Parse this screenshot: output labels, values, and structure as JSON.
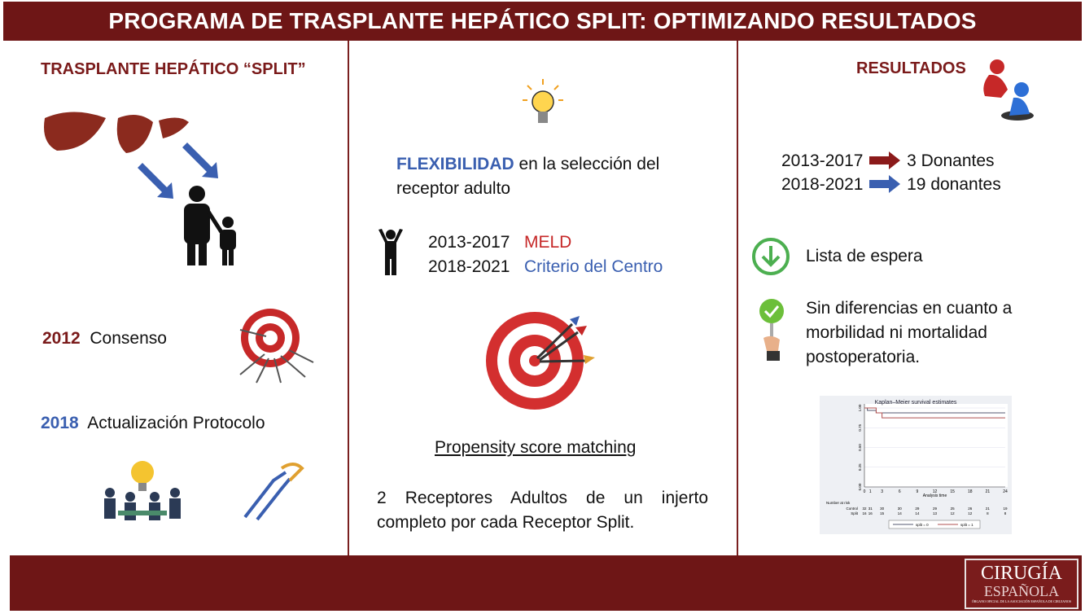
{
  "title": "PROGRAMA DE TRASPLANTE HEPÁTICO SPLIT: OPTIMIZANDO RESULTADOS",
  "colors": {
    "brand": "#6e1616",
    "accent_blue": "#3a5fb0",
    "accent_red": "#8b1a1a",
    "green": "#4caf50"
  },
  "left": {
    "heading": "TRASPLANTE HEPÁTICO “SPLIT”",
    "item1_year": "2012",
    "item1_label": "Consenso",
    "item2_year": "2018",
    "item2_label": "Actualización Protocolo",
    "icons": [
      "liver-icon",
      "arrow-icon",
      "parent-child-icon",
      "target-icon",
      "teamwork-icon",
      "handshake-icon"
    ]
  },
  "center": {
    "flex_bold": "FLEXIBILIDAD",
    "flex_rest": " en la selección del",
    "flex_line2": "receptor adulto",
    "period1": "2013-2017",
    "crit1": "MELD",
    "period2": "2018-2021",
    "crit2": "Criterio del Centro",
    "psm": "Propensity score matching",
    "summary": "2 Receptores Adultos de un injerto completo por cada Receptor Split.",
    "icons": [
      "lightbulb-icon",
      "person-icon",
      "target-darts-icon"
    ]
  },
  "right": {
    "heading": "RESULTADOS",
    "row1_period": "2013-2017",
    "row1_value": "3 Donantes",
    "row2_period": "2018-2021",
    "row2_value": "19 donantes",
    "waitlist": "Lista de espera",
    "nodiff": "Sin diferencias en cuanto a morbilidad ni mortalidad postoperatoria.",
    "icons": [
      "helping-figures-icon",
      "down-arrow-circle-icon",
      "check-hand-icon"
    ]
  },
  "chart_data": {
    "type": "line",
    "title": "Kaplan–Meier survival estimates",
    "xlabel": "Analysis time",
    "ylabel": "",
    "xticks": [
      0,
      1,
      3,
      6,
      9,
      12,
      15,
      18,
      21,
      24
    ],
    "yticks": [
      "0.00",
      "0.25",
      "0.50",
      "0.75",
      "1.00"
    ],
    "xlim": [
      0,
      24
    ],
    "ylim": [
      0,
      1
    ],
    "grid": true,
    "legend_placement": "bottom",
    "series": [
      {
        "name": "split = 0",
        "color": "#555a70",
        "x": [
          0,
          0.5,
          2,
          24
        ],
        "y": [
          1,
          0.969,
          0.938,
          0.938
        ]
      },
      {
        "name": "split = 1",
        "color": "#b05050",
        "x": [
          0,
          2,
          3,
          24
        ],
        "y": [
          1,
          0.938,
          0.875,
          0.875
        ]
      }
    ],
    "risk_table": {
      "label": "Number at risk",
      "times": [
        "0",
        "1",
        "3",
        "6",
        "9",
        "12",
        "15",
        "18",
        "21",
        "24"
      ],
      "rows": [
        {
          "name": "Control",
          "values": [
            "32",
            "31",
            "30",
            "30",
            "29",
            "29",
            "25",
            "26",
            "21",
            "19"
          ]
        },
        {
          "name": "Split",
          "values": [
            "16",
            "16",
            "15",
            "14",
            "14",
            "13",
            "12",
            "12",
            "8",
            "8"
          ]
        }
      ]
    }
  },
  "logo": {
    "line1": "CIRUGÍA",
    "line2": "ESPAÑOLA",
    "line3": "ÓRGANO OFICIAL DE LA ASOCIACIÓN ESPAÑOLA DE CIRUJANOS"
  }
}
